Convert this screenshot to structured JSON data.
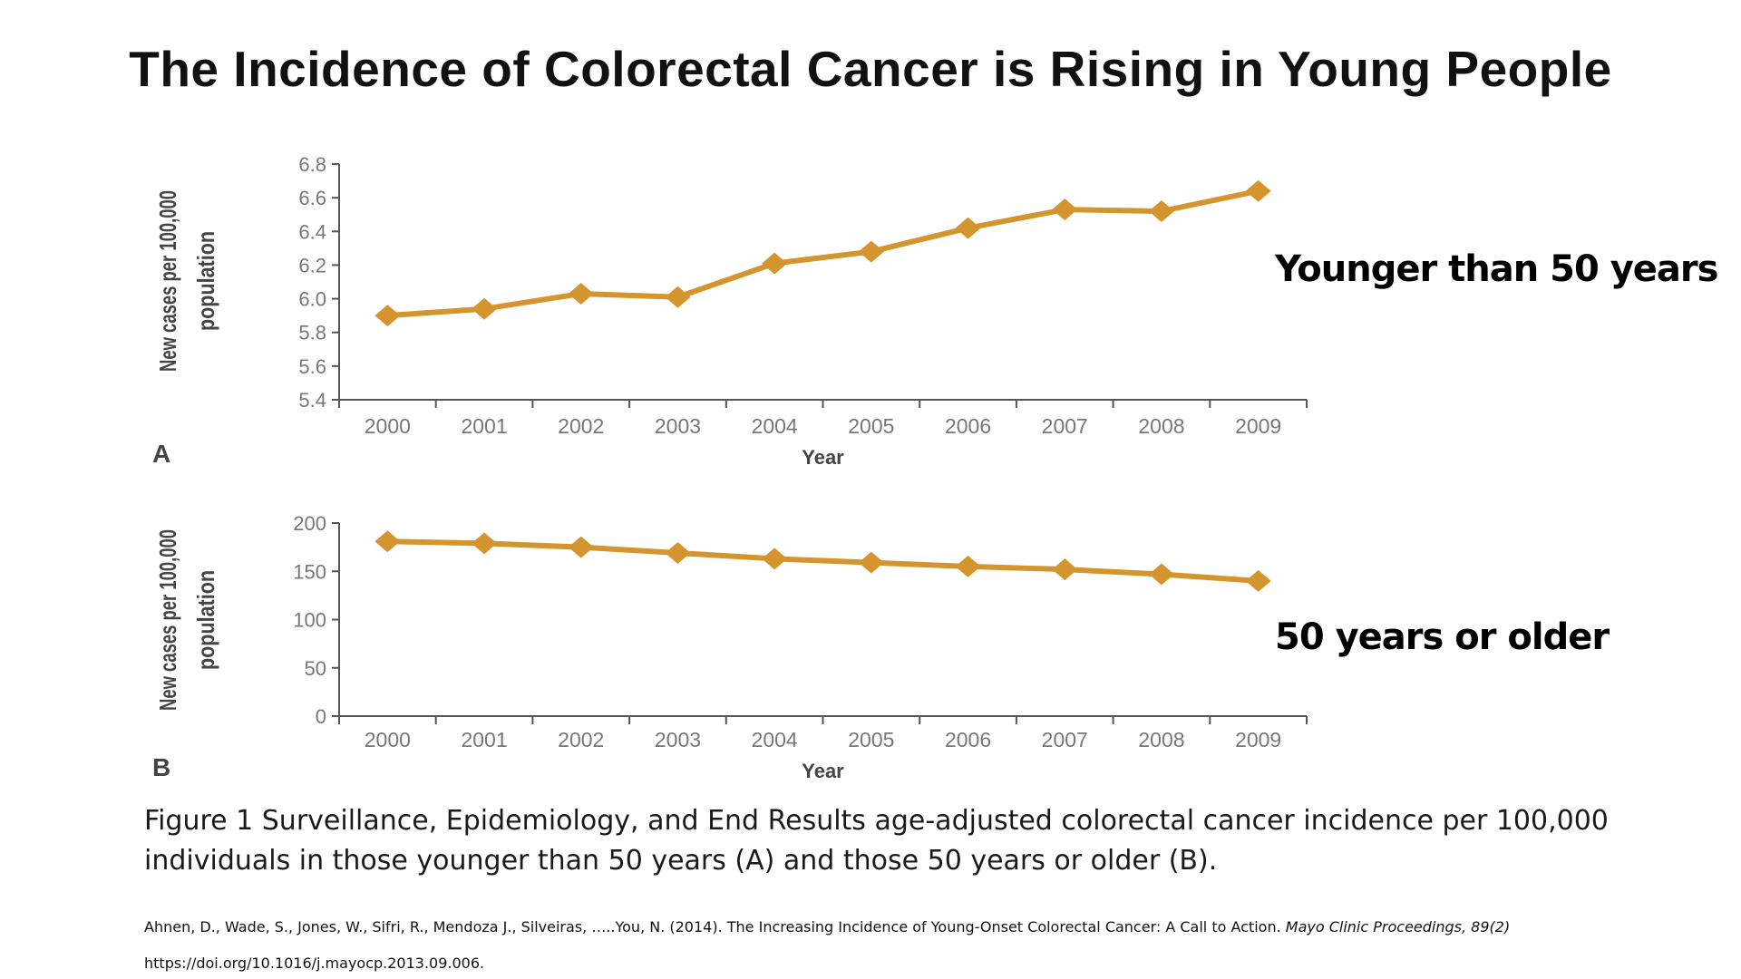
{
  "title": "The Incidence of Colorectal Cancer is Rising in Young People",
  "chart_data": [
    {
      "type": "line",
      "panel_label": "A",
      "side_label": "Younger than 50 years",
      "xlabel": "Year",
      "ylabel": [
        "New cases per 100,000",
        "population"
      ],
      "categories": [
        "2000",
        "2001",
        "2002",
        "2003",
        "2004",
        "2005",
        "2006",
        "2007",
        "2008",
        "2009"
      ],
      "values": [
        5.9,
        5.94,
        6.03,
        6.01,
        6.21,
        6.28,
        6.42,
        6.53,
        6.52,
        6.64
      ],
      "ylim": [
        5.4,
        6.8
      ],
      "yticks": [
        "5.4",
        "5.6",
        "5.8",
        "6.0",
        "6.2",
        "6.4",
        "6.6",
        "6.8"
      ],
      "grid": false,
      "color": "#D4952F"
    },
    {
      "type": "line",
      "panel_label": "B",
      "side_label": "50 years or older",
      "xlabel": "Year",
      "ylabel": [
        "New cases per 100,000",
        "population"
      ],
      "categories": [
        "2000",
        "2001",
        "2002",
        "2003",
        "2004",
        "2005",
        "2006",
        "2007",
        "2008",
        "2009"
      ],
      "values": [
        181,
        179,
        175,
        169,
        163,
        159,
        155,
        152,
        147,
        140
      ],
      "ylim": [
        0,
        200
      ],
      "yticks": [
        "0",
        "50",
        "100",
        "150",
        "200"
      ],
      "grid": false,
      "color": "#D4952F"
    }
  ],
  "caption": [
    "Figure 1  Surveillance, Epidemiology, and End Results age-adjusted colorectal cancer incidence per 100,000",
    "individuals in those younger than 50 years (A) and those 50 years or older (B)."
  ],
  "reference": {
    "authors": "Ahnen, D., Wade, S., Jones, W., Sifri, R., Mendoza J., Silveiras, …..You, N. (2014). The Increasing Incidence of Young-Onset Colorectal Cancer: A Call to Action. ",
    "journal": "Mayo Clinic Proceedings, 89(2)",
    "doi": "https://doi.org/10.1016/j.mayocp.2013.09.006."
  }
}
